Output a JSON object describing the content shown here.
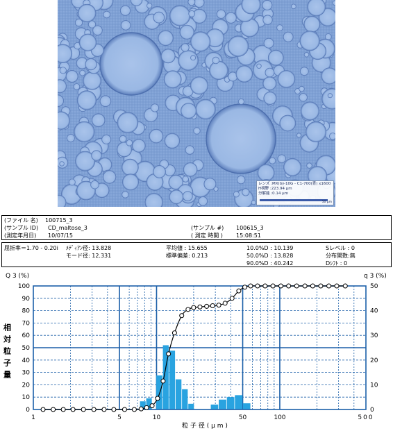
{
  "image": {
    "scale_lines": [
      "レンズ :MX(G)-10G - C1-700(青) x1600",
      "H視野 :223.94 μm",
      "分解能 :0.14 μm"
    ],
    "scale_bar_label": "50 μm"
  },
  "info": {
    "file_label": "(ファイル 名)",
    "file_value": "100715_3",
    "sample_id_label": "(サンプル ID)",
    "sample_id_value": "CD_maltose_3",
    "date_label": "(測定年月日)",
    "date_value": "10/07/15",
    "sample_no_label": "(サンプル #)",
    "sample_no_value": "100615_3",
    "time_label": "( 測定 時間 )",
    "time_value": "15:08:51"
  },
  "stats": {
    "refractive": "屈折率＝1.70 - 0.20i",
    "median": "ﾒﾃﾞｨｱﾝ径:  13.828",
    "mode": "モード径:  12.331",
    "mean": "平均値  :  15.655",
    "sd": "標準偏差:   0.213",
    "d10": "10.0%D :   10.139",
    "d50": "50.0%D :   13.828",
    "d90": "90.0%D :   40.242",
    "slevel": "Sレベル  : 0",
    "dist": "分布関数:無",
    "dshift": "Dｼﾌﾄ    : 0"
  },
  "chart_data": {
    "type": "bar",
    "x_scale": "log",
    "xlabel": "粒 子 径 ( μ m )",
    "ylabel_left": "相対粒子量",
    "left_axis_title": "Q 3 (%)",
    "right_axis_title": "q 3 (%)",
    "xlim": [
      1,
      500
    ],
    "ylim_left": [
      0,
      100
    ],
    "ylim_right": [
      0,
      50
    ],
    "x_ticks": [
      1,
      5,
      10,
      50,
      100,
      500
    ],
    "y_ticks_left": [
      0,
      10,
      20,
      30,
      40,
      50,
      60,
      70,
      80,
      90,
      100
    ],
    "y_ticks_right": [
      0,
      10,
      20,
      30,
      40,
      50
    ],
    "grid": true,
    "bar_color": "#29a3e0",
    "bars": [
      {
        "x_from": 7.3,
        "x_to": 8.2,
        "value": 3.3
      },
      {
        "x_from": 8.2,
        "x_to": 9.2,
        "value": 4.5
      },
      {
        "x_from": 9.9,
        "x_to": 11.2,
        "value": 13.8
      },
      {
        "x_from": 11.2,
        "x_to": 12.6,
        "value": 26.0
      },
      {
        "x_from": 12.6,
        "x_to": 14.2,
        "value": 23.8
      },
      {
        "x_from": 14.2,
        "x_to": 16.0,
        "value": 12.2
      },
      {
        "x_from": 16.0,
        "x_to": 18.0,
        "value": 8.2
      },
      {
        "x_from": 18.0,
        "x_to": 20.2,
        "value": 2.3
      },
      {
        "x_from": 27.4,
        "x_to": 31.8,
        "value": 2.0
      },
      {
        "x_from": 31.8,
        "x_to": 37.0,
        "value": 4.0
      },
      {
        "x_from": 37.0,
        "x_to": 43.0,
        "value": 5.0
      },
      {
        "x_from": 43.0,
        "x_to": 50.0,
        "value": 5.8
      },
      {
        "x_from": 50.0,
        "x_to": 58.0,
        "value": 2.5
      }
    ],
    "cumulative": {
      "x": [
        1.2,
        1.45,
        1.75,
        2.1,
        2.55,
        3.1,
        3.75,
        4.5,
        5.5,
        6.6,
        7.5,
        8.3,
        9.2,
        10.2,
        11.3,
        12.5,
        14.0,
        16.0,
        18.0,
        20.0,
        22.5,
        25.5,
        28.5,
        32.0,
        36.0,
        41.0,
        46.5,
        52.0,
        58.0,
        66.0,
        76.0,
        88.0,
        102.0,
        118.0,
        137.0,
        160.0,
        185.0,
        215.0,
        250.0,
        290.0,
        340.0
      ],
      "y": [
        0,
        0,
        0,
        0,
        0,
        0,
        0,
        0,
        0,
        0,
        0.5,
        1.5,
        3,
        9,
        23,
        45,
        62,
        76,
        81,
        82.5,
        83,
        83.5,
        84,
        84.5,
        86,
        90,
        96,
        99,
        100,
        100,
        100,
        100,
        100,
        100,
        100,
        100,
        100,
        100,
        100,
        100,
        100
      ]
    }
  }
}
